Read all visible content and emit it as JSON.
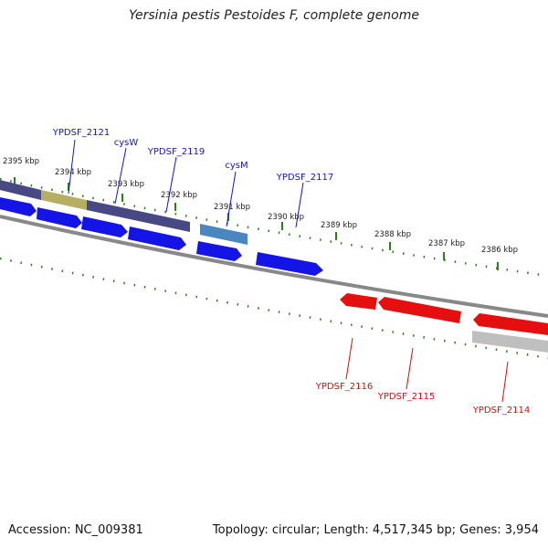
{
  "title": "Yersinia pestis Pestoides F, complete genome",
  "accession": "Accession: NC_009381",
  "topology": "Topology: circular; Length: 4,517,345 bp; Genes: 3,954",
  "colors": {
    "background": "#ffffff",
    "forward_gene": "#1414e6",
    "reverse_gene": "#e60f0f",
    "feature_band": "#484884",
    "feature_highlight": "#b6ae62",
    "feature_light": "#4a86bf",
    "feature_grey": "#bfbfbf",
    "backbone": "#888888",
    "ticks": "#2e7d1f",
    "forward_label": "#1414c8",
    "reverse_label": "#d01010"
  },
  "scale_labels": [
    "2395 kbp",
    "2394 kbp",
    "2393 kbp",
    "2392 kbp",
    "2391 kbp",
    "2390 kbp",
    "2389 kbp",
    "2388 kbp",
    "2387 kbp",
    "2386 kbp"
  ],
  "forward_genes": [
    "YPDSF_2121",
    "cysW",
    "YPDSF_2119",
    "cysM",
    "YPDSF_2117"
  ],
  "reverse_genes": [
    "YPDSF_2116",
    "YPDSF_2115",
    "YPDSF_2114"
  ]
}
